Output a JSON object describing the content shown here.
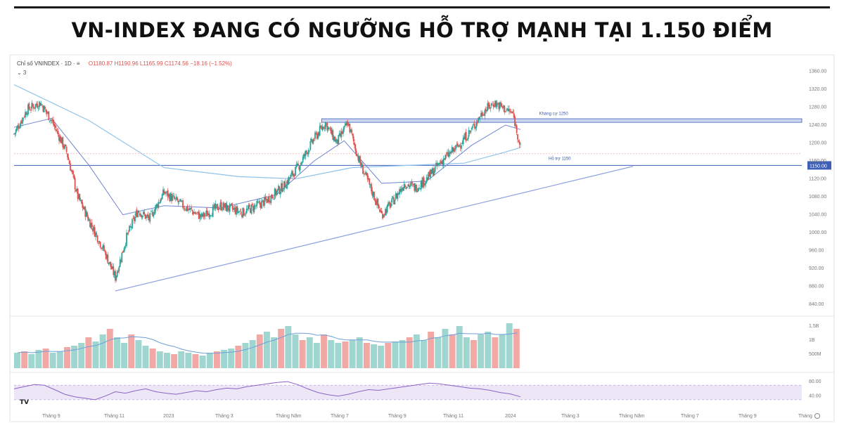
{
  "headline": "VN-INDEX ĐANG CÓ NGƯỠNG HỖ TRỢ MẠNH TẠI 1.150 ĐIỂM",
  "legend": {
    "symbol": "Chỉ số VNINDEX · 1D · ≡",
    "ohlc": "O1180.87 H1190.96 L1165.99 C1174.56 −18.16 (−1.52%)",
    "sub": "⌄ 3"
  },
  "colors": {
    "up": "#26a69a",
    "down": "#e0504e",
    "ma_short": "#6f84d2",
    "ma_long": "#8ec4ea",
    "level": "#3d5fb8",
    "trend": "#8a9fe0",
    "rsi": "#8d63c6",
    "rsi_band": "#ece6f6"
  },
  "chart_data": [
    {
      "type": "candlestick",
      "title": "",
      "y_ticks": [
        "1360.00",
        "1320.00",
        "1280.00",
        "1240.00",
        "1200.00",
        "1160.00",
        "1120.00",
        "1080.00",
        "1040.00",
        "1000.00",
        "960.00",
        "920.00",
        "880.00",
        "840.00"
      ],
      "x_ticks": [
        "Tháng 9",
        "Tháng 11",
        "2023",
        "Tháng 3",
        "Tháng Năm",
        "Tháng 7",
        "Tháng 9",
        "Tháng 11",
        "2024",
        "Tháng 3",
        "Tháng Năm",
        "Tháng 7",
        "Tháng 9",
        "Tháng"
      ],
      "ylim": [
        820,
        1370
      ],
      "close_series": [
        {
          "x": 0,
          "y": 1220
        },
        {
          "x": 7,
          "y": 1275
        },
        {
          "x": 14,
          "y": 1290
        },
        {
          "x": 20,
          "y": 1250
        },
        {
          "x": 28,
          "y": 1180
        },
        {
          "x": 34,
          "y": 1080
        },
        {
          "x": 42,
          "y": 1010
        },
        {
          "x": 48,
          "y": 960
        },
        {
          "x": 54,
          "y": 900
        },
        {
          "x": 60,
          "y": 990
        },
        {
          "x": 66,
          "y": 1050
        },
        {
          "x": 72,
          "y": 1030
        },
        {
          "x": 80,
          "y": 1090
        },
        {
          "x": 90,
          "y": 1060
        },
        {
          "x": 100,
          "y": 1035
        },
        {
          "x": 110,
          "y": 1060
        },
        {
          "x": 122,
          "y": 1045
        },
        {
          "x": 134,
          "y": 1070
        },
        {
          "x": 144,
          "y": 1105
        },
        {
          "x": 152,
          "y": 1150
        },
        {
          "x": 160,
          "y": 1210
        },
        {
          "x": 166,
          "y": 1245
        },
        {
          "x": 172,
          "y": 1200
        },
        {
          "x": 178,
          "y": 1245
        },
        {
          "x": 184,
          "y": 1160
        },
        {
          "x": 190,
          "y": 1100
        },
        {
          "x": 196,
          "y": 1040
        },
        {
          "x": 202,
          "y": 1070
        },
        {
          "x": 208,
          "y": 1110
        },
        {
          "x": 214,
          "y": 1100
        },
        {
          "x": 220,
          "y": 1120
        },
        {
          "x": 228,
          "y": 1160
        },
        {
          "x": 236,
          "y": 1190
        },
        {
          "x": 244,
          "y": 1230
        },
        {
          "x": 250,
          "y": 1270
        },
        {
          "x": 256,
          "y": 1290
        },
        {
          "x": 262,
          "y": 1275
        },
        {
          "x": 266,
          "y": 1265
        },
        {
          "x": 270,
          "y": 1190
        }
      ],
      "ma_short": [
        {
          "x": 0,
          "y": 1235
        },
        {
          "x": 20,
          "y": 1255
        },
        {
          "x": 40,
          "y": 1150
        },
        {
          "x": 58,
          "y": 1040
        },
        {
          "x": 80,
          "y": 1060
        },
        {
          "x": 110,
          "y": 1055
        },
        {
          "x": 140,
          "y": 1085
        },
        {
          "x": 160,
          "y": 1160
        },
        {
          "x": 176,
          "y": 1205
        },
        {
          "x": 196,
          "y": 1110
        },
        {
          "x": 220,
          "y": 1115
        },
        {
          "x": 244,
          "y": 1195
        },
        {
          "x": 262,
          "y": 1240
        },
        {
          "x": 270,
          "y": 1230
        }
      ],
      "ma_long": [
        {
          "x": 0,
          "y": 1330
        },
        {
          "x": 40,
          "y": 1250
        },
        {
          "x": 80,
          "y": 1145
        },
        {
          "x": 120,
          "y": 1125
        },
        {
          "x": 150,
          "y": 1120
        },
        {
          "x": 180,
          "y": 1145
        },
        {
          "x": 210,
          "y": 1150
        },
        {
          "x": 240,
          "y": 1155
        },
        {
          "x": 262,
          "y": 1180
        },
        {
          "x": 270,
          "y": 1190
        }
      ],
      "annotations": [
        {
          "label": "Kháng cự 1250",
          "value": 1250
        },
        {
          "label": "Hỗ trợ 1150",
          "value": 1150
        },
        {
          "label": "1150.00",
          "value": 1150
        }
      ]
    },
    {
      "type": "bar",
      "title": "",
      "y_ticks": [
        "1.5B",
        "1B",
        "500M"
      ],
      "ylim": [
        0,
        1.7
      ],
      "values": [
        0.55,
        0.6,
        0.5,
        0.65,
        0.7,
        0.55,
        0.6,
        0.75,
        0.8,
        0.9,
        1.1,
        0.95,
        1.2,
        1.4,
        1.1,
        0.9,
        1.2,
        1.0,
        0.8,
        0.7,
        0.6,
        0.55,
        0.5,
        0.6,
        0.55,
        0.5,
        0.45,
        0.55,
        0.6,
        0.65,
        0.7,
        0.8,
        0.9,
        1.0,
        1.2,
        1.3,
        1.1,
        1.4,
        1.5,
        1.2,
        1.0,
        1.1,
        0.9,
        1.2,
        1.0,
        0.9,
        0.95,
        1.0,
        1.1,
        0.9,
        0.85,
        0.8,
        0.9,
        0.95,
        1.0,
        1.1,
        1.2,
        1.0,
        1.3,
        1.1,
        1.4,
        1.2,
        1.5,
        1.1,
        1.0,
        1.2,
        1.3,
        1.1,
        1.2,
        1.6,
        1.4
      ]
    },
    {
      "type": "line",
      "title": "",
      "y_ticks": [
        "80.00",
        "40.00"
      ],
      "ylim": [
        20,
        90
      ],
      "values": [
        60,
        66,
        72,
        70,
        58,
        45,
        38,
        34,
        30,
        40,
        52,
        48,
        55,
        60,
        52,
        48,
        45,
        50,
        55,
        52,
        58,
        62,
        60,
        66,
        70,
        74,
        78,
        80,
        72,
        60,
        50,
        44,
        40,
        45,
        52,
        58,
        56,
        60,
        64,
        68,
        72,
        76,
        74,
        70,
        66,
        62,
        60,
        56,
        50,
        46,
        38
      ]
    }
  ]
}
